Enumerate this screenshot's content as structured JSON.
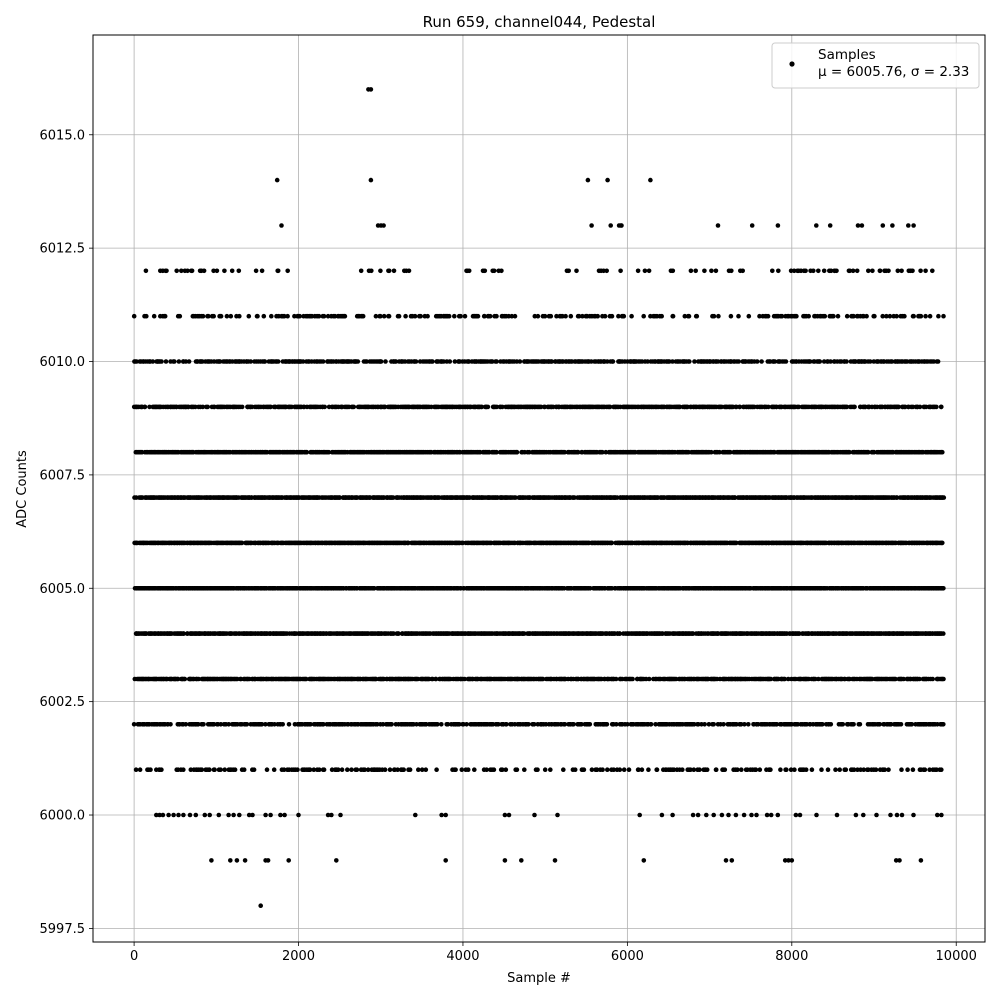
{
  "chart_data": {
    "type": "scatter",
    "title": "Run 659, channel044, Pedestal",
    "xlabel": "Sample #",
    "ylabel": "ADC Counts",
    "xlim": [
      -500,
      10350
    ],
    "ylim": [
      5997.2,
      6017.2
    ],
    "x_ticks": [
      0,
      2000,
      4000,
      6000,
      8000,
      10000
    ],
    "x_tick_labels": [
      "0",
      "2000",
      "4000",
      "6000",
      "8000",
      "10000"
    ],
    "y_ticks": [
      5997.5,
      6000.0,
      6002.5,
      6005.0,
      6007.5,
      6010.0,
      6012.5,
      6015.0
    ],
    "y_tick_labels": [
      "5997.5",
      "6000.0",
      "6002.5",
      "6005.0",
      "6007.5",
      "6010.0",
      "6012.5",
      "6015.0"
    ],
    "grid": true,
    "legend_position": "top-right",
    "series": [
      {
        "name": "Samples",
        "legend_label": "μ = 6005.76, σ = 2.33",
        "color": "#000000",
        "marker": "dot",
        "n_samples": 9850,
        "mean": 6005.76,
        "std": 2.33,
        "x_range": [
          0,
          9849
        ],
        "levels": [
          5998,
          5999,
          6000,
          6001,
          6002,
          6003,
          6004,
          6005,
          6006,
          6007,
          6008,
          6009,
          6010,
          6011,
          6012,
          6013,
          6014,
          6016
        ],
        "level_points": [
          {
            "y": 5998,
            "x": [
              1540
            ]
          },
          {
            "y": 5999,
            "x": [
              940,
              1170,
              1250,
              1350,
              1600,
              1630,
              1880,
              2460,
              3790,
              4510,
              4710,
              5120,
              6200,
              7200,
              7270,
              7920,
              7960,
              8000,
              9270,
              9310,
              9570
            ]
          },
          {
            "y": 6000,
            "x": [
              270,
              310,
              350,
              420,
              480,
              540,
              600,
              680,
              750,
              860,
              920,
              1030,
              1150,
              1210,
              1280,
              1400,
              1440,
              1600,
              1660,
              1780,
              1830,
              2000,
              2360,
              2400,
              2510,
              3420,
              3740,
              3790,
              4510,
              4560,
              4870,
              5150,
              6150,
              6420,
              6550,
              6800,
              6860,
              6960,
              7050,
              7150,
              7230,
              7320,
              7420,
              7510,
              7570,
              7700,
              7750,
              7830,
              8050,
              8100,
              8300,
              8550,
              8780,
              8870,
              9030,
              9200,
              9280,
              9340,
              9480,
              9770,
              9820
            ]
          },
          {
            "y": 6014,
            "x": [
              1740,
              2880,
              5520,
              5760,
              6280
            ]
          },
          {
            "y": 6016,
            "x": [
              2850,
              2880
            ]
          }
        ],
        "band_gaps": [
          {
            "y": 6012,
            "x": [
              [
                0,
                80
              ],
              [
                1900,
                2640
              ],
              [
                3450,
                3950
              ],
              [
                4500,
                5260
              ]
            ]
          },
          {
            "y": 6013,
            "x": [
              [
                0,
                1700
              ],
              [
                1800,
                2870
              ],
              [
                3200,
                4240
              ],
              [
                4280,
                5350
              ]
            ]
          }
        ]
      }
    ]
  }
}
